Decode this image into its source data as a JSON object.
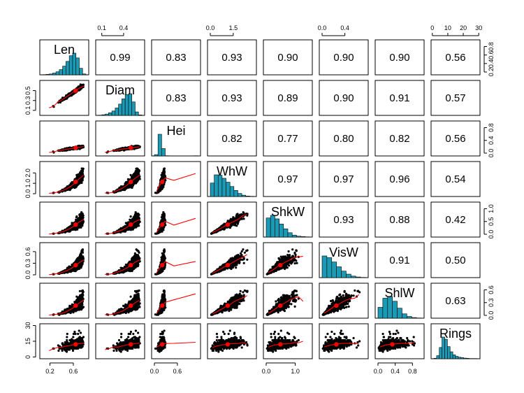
{
  "chart_data": {
    "type": "scatter",
    "subtype": "pairs-panels scatterplot matrix",
    "variables": [
      "Len",
      "Diam",
      "Hei",
      "WhW",
      "ShkW",
      "VisW",
      "ShlW",
      "Rings"
    ],
    "correlations": [
      {
        "row": "Len",
        "col": "Diam",
        "r": "0.99"
      },
      {
        "row": "Len",
        "col": "Hei",
        "r": "0.83"
      },
      {
        "row": "Len",
        "col": "WhW",
        "r": "0.93"
      },
      {
        "row": "Len",
        "col": "ShkW",
        "r": "0.90"
      },
      {
        "row": "Len",
        "col": "VisW",
        "r": "0.90"
      },
      {
        "row": "Len",
        "col": "ShlW",
        "r": "0.90"
      },
      {
        "row": "Len",
        "col": "Rings",
        "r": "0.56"
      },
      {
        "row": "Diam",
        "col": "Hei",
        "r": "0.83"
      },
      {
        "row": "Diam",
        "col": "WhW",
        "r": "0.93"
      },
      {
        "row": "Diam",
        "col": "ShkW",
        "r": "0.89"
      },
      {
        "row": "Diam",
        "col": "VisW",
        "r": "0.90"
      },
      {
        "row": "Diam",
        "col": "ShlW",
        "r": "0.91"
      },
      {
        "row": "Diam",
        "col": "Rings",
        "r": "0.57"
      },
      {
        "row": "Hei",
        "col": "WhW",
        "r": "0.82"
      },
      {
        "row": "Hei",
        "col": "ShkW",
        "r": "0.77"
      },
      {
        "row": "Hei",
        "col": "VisW",
        "r": "0.80"
      },
      {
        "row": "Hei",
        "col": "ShlW",
        "r": "0.82"
      },
      {
        "row": "Hei",
        "col": "Rings",
        "r": "0.56"
      },
      {
        "row": "WhW",
        "col": "ShkW",
        "r": "0.97"
      },
      {
        "row": "WhW",
        "col": "VisW",
        "r": "0.97"
      },
      {
        "row": "WhW",
        "col": "ShlW",
        "r": "0.96"
      },
      {
        "row": "WhW",
        "col": "Rings",
        "r": "0.54"
      },
      {
        "row": "ShkW",
        "col": "VisW",
        "r": "0.93"
      },
      {
        "row": "ShkW",
        "col": "ShlW",
        "r": "0.88"
      },
      {
        "row": "ShkW",
        "col": "Rings",
        "r": "0.42"
      },
      {
        "row": "VisW",
        "col": "ShlW",
        "r": "0.91"
      },
      {
        "row": "VisW",
        "col": "Rings",
        "r": "0.50"
      },
      {
        "row": "ShlW",
        "col": "Rings",
        "r": "0.63"
      }
    ],
    "ranges": {
      "Len": [
        0.075,
        0.815
      ],
      "Diam": [
        0.055,
        0.65
      ],
      "Hei": [
        0.0,
        1.13
      ],
      "WhW": [
        0.0,
        2.83
      ],
      "ShkW": [
        0.0,
        1.49
      ],
      "VisW": [
        0.0,
        0.76
      ],
      "ShlW": [
        0.0,
        1.005
      ],
      "Rings": [
        1,
        29
      ]
    },
    "histograms": {
      "Len": [
        1,
        2,
        4,
        8,
        14,
        24,
        40,
        62,
        88,
        100,
        78,
        30,
        4
      ],
      "Diam": [
        1,
        3,
        6,
        12,
        20,
        34,
        52,
        76,
        96,
        100,
        62,
        16,
        2
      ],
      "Hei": [
        6,
        100,
        34,
        1,
        0,
        0,
        0,
        0,
        0,
        0,
        0,
        1
      ],
      "WhW": [
        62,
        100,
        98,
        84,
        66,
        46,
        28,
        14,
        6,
        2,
        1
      ],
      "ShkW": [
        88,
        100,
        84,
        60,
        38,
        20,
        9,
        4,
        2,
        1
      ],
      "VisW": [
        100,
        92,
        72,
        50,
        30,
        16,
        7,
        3,
        1
      ],
      "ShlW": [
        50,
        92,
        100,
        78,
        46,
        20,
        8,
        3,
        1
      ],
      "Rings": [
        2,
        14,
        52,
        100,
        90,
        56,
        32,
        18,
        11,
        7,
        5,
        3,
        2,
        1,
        1,
        1
      ]
    },
    "ticks": {
      "top": [
        {
          "col": "Diam",
          "values": [
            0.1,
            0.4
          ],
          "labels": [
            "0.1",
            "0.4"
          ]
        },
        {
          "col": "WhW",
          "values": [
            0,
            1.5
          ],
          "labels": [
            "0.0",
            "1.5"
          ]
        },
        {
          "col": "VisW",
          "values": [
            0,
            0.4
          ],
          "labels": [
            "0.0",
            "0.4"
          ]
        },
        {
          "col": "Rings",
          "values": [
            0,
            10,
            20,
            30
          ],
          "labels": [
            "0",
            "10",
            "20",
            "30"
          ]
        }
      ],
      "bottom": [
        {
          "col": "Len",
          "values": [
            0.2,
            0.6
          ],
          "labels": [
            "0.2",
            "0.6"
          ]
        },
        {
          "col": "Hei",
          "values": [
            0,
            0.6
          ],
          "labels": [
            "0.0",
            "0.6"
          ]
        },
        {
          "col": "ShkW",
          "values": [
            0,
            1.0
          ],
          "labels": [
            "0.0",
            "1.0"
          ]
        },
        {
          "col": "ShlW",
          "values": [
            0,
            0.4,
            0.8
          ],
          "labels": [
            "0.0",
            "0.4",
            "0.8"
          ]
        }
      ],
      "left": [
        {
          "row": "Diam",
          "values": [
            0.1,
            0.3,
            0.5
          ],
          "labels": [
            "0.1",
            "0.3",
            "0.5"
          ]
        },
        {
          "row": "WhW",
          "values": [
            0,
            1,
            2
          ],
          "labels": [
            "0.0",
            "1.0",
            "2.0"
          ]
        },
        {
          "row": "VisW",
          "values": [
            0,
            0.3,
            0.6
          ],
          "labels": [
            "0.0",
            "0.3",
            "0.6"
          ]
        },
        {
          "row": "Rings",
          "values": [
            0,
            15,
            30
          ],
          "labels": [
            "0",
            "15",
            "30"
          ]
        }
      ],
      "right": [
        {
          "row": "Len",
          "values": [
            0.2,
            0.4,
            0.6,
            0.8
          ],
          "labels": [
            "0.2",
            "0.4",
            "0.6",
            "0.8"
          ]
        },
        {
          "row": "Hei",
          "values": [
            0,
            0.4,
            0.8
          ],
          "labels": [
            "0.0",
            "0.4",
            "0.8"
          ]
        },
        {
          "row": "ShkW",
          "values": [
            0,
            0.5,
            1.0
          ],
          "labels": [
            "0.0",
            "0.5",
            "1.0"
          ]
        },
        {
          "row": "ShlW",
          "values": [
            0,
            0.3,
            0.6
          ],
          "labels": [
            "0.0",
            "0.3",
            "0.6"
          ]
        }
      ]
    },
    "colors": {
      "histogram": "#1a9ab5",
      "points": "#000000",
      "smoother": "#ff0000",
      "ellipse_center": "#ff0000"
    }
  }
}
